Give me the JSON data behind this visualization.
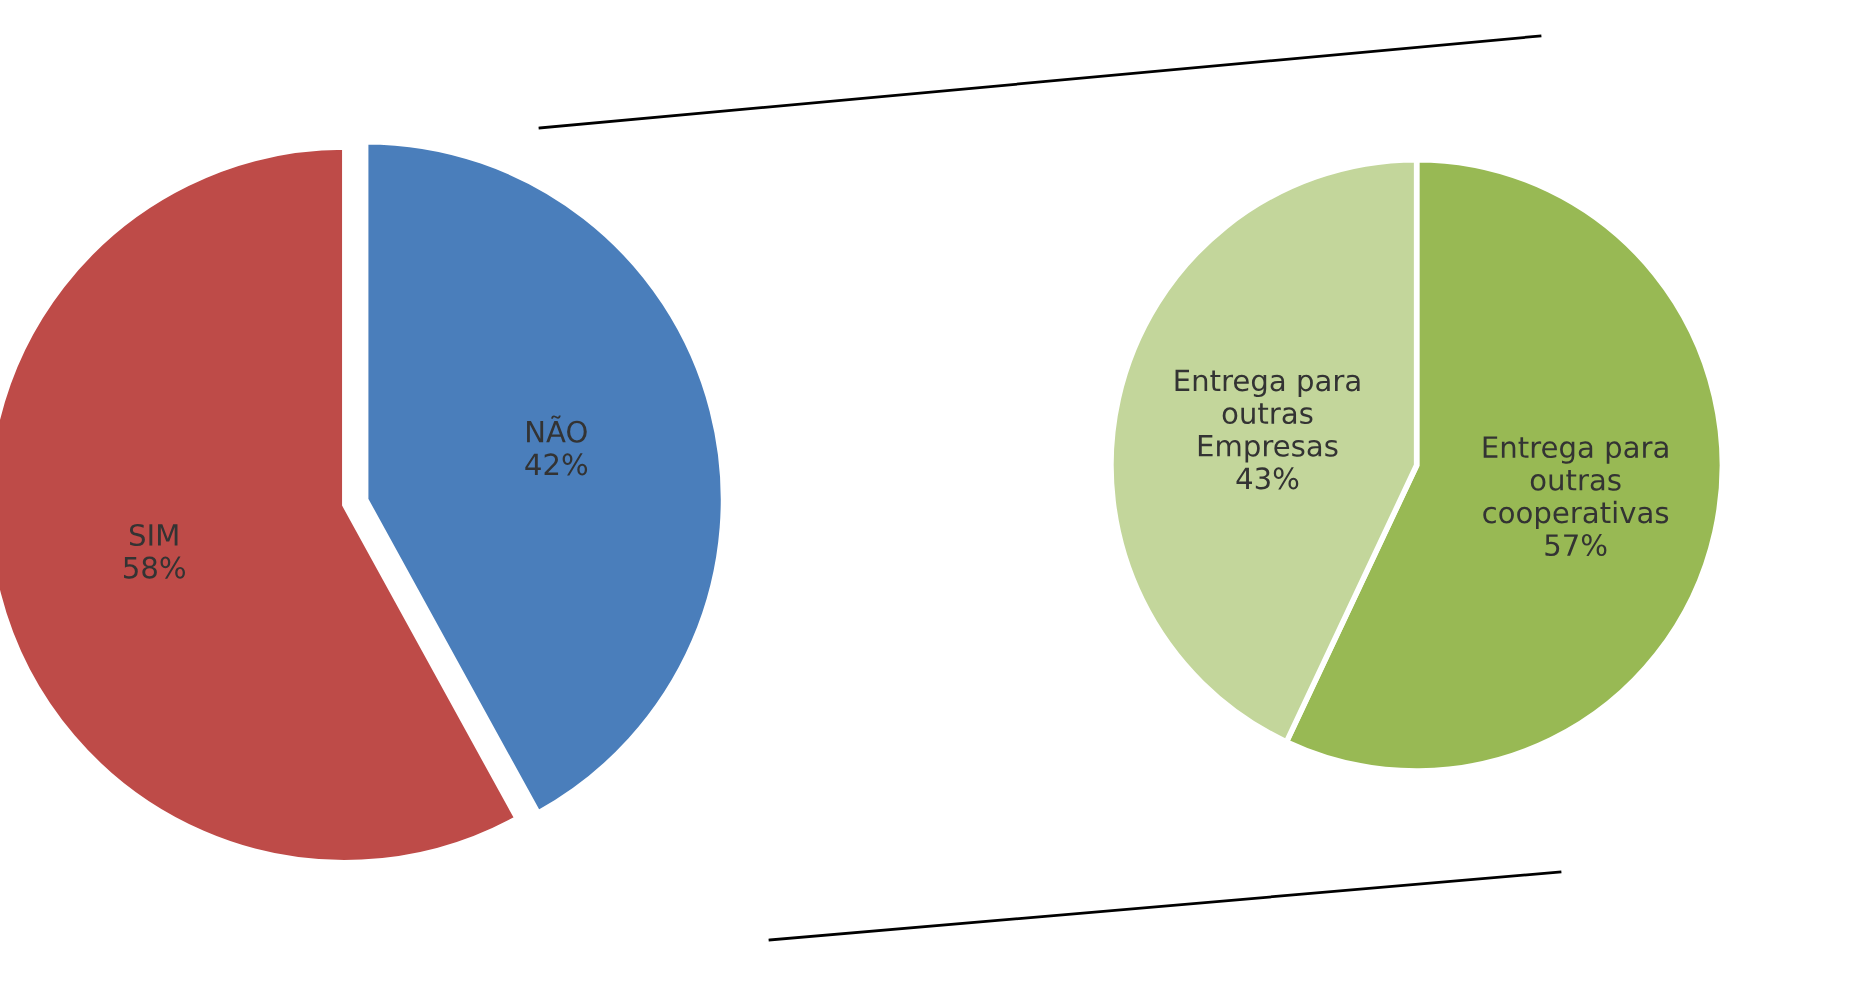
{
  "chart_data": [
    {
      "type": "pie",
      "categories": [
        "NÃO",
        "SIM"
      ],
      "values": [
        42,
        58
      ],
      "value_labels": [
        "42%",
        "58%"
      ],
      "colors": [
        "#4a7ebb",
        "#be4b48"
      ],
      "legend": false
    },
    {
      "type": "pie",
      "categories": [
        "Entrega para outras cooperativas",
        "Entrega para outras Empresas"
      ],
      "values": [
        57,
        43
      ],
      "value_labels": [
        "57%",
        "43%"
      ],
      "colors": [
        "#98b954",
        "#c3d69b"
      ],
      "legend": false
    }
  ]
}
